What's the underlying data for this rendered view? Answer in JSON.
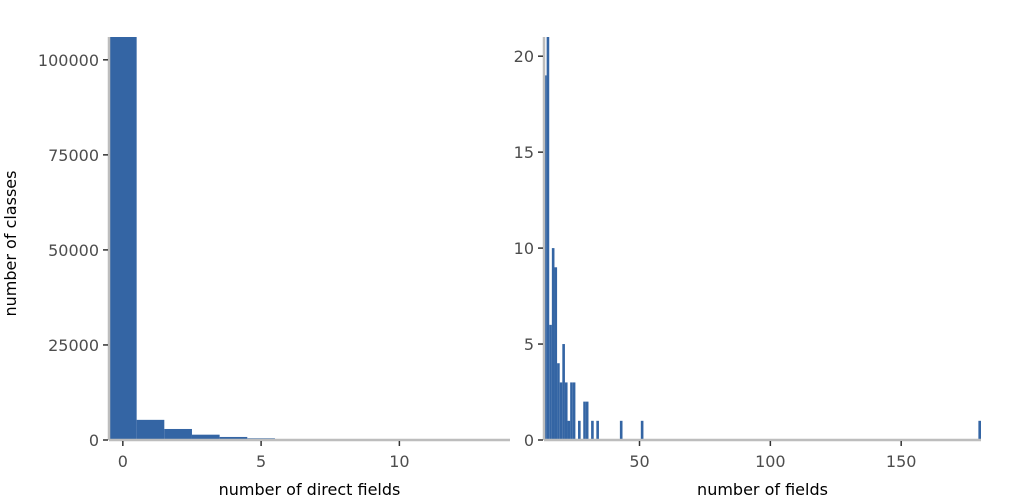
{
  "chart_data": [
    {
      "type": "bar",
      "xlabel": "number of direct fields",
      "ylabel": "number of classes",
      "xlim": [
        -0.5,
        14
      ],
      "ylim": [
        0,
        106000
      ],
      "x_ticks": [
        0,
        5,
        10
      ],
      "y_ticks": [
        0,
        25000,
        50000,
        75000,
        100000
      ],
      "bin_width": 1,
      "bins": [
        {
          "x": 0,
          "count": 106000
        },
        {
          "x": 1,
          "count": 5300
        },
        {
          "x": 2,
          "count": 2900
        },
        {
          "x": 3,
          "count": 1400
        },
        {
          "x": 4,
          "count": 800
        },
        {
          "x": 5,
          "count": 450
        },
        {
          "x": 6,
          "count": 250
        },
        {
          "x": 7,
          "count": 150
        },
        {
          "x": 8,
          "count": 100
        },
        {
          "x": 9,
          "count": 60
        },
        {
          "x": 10,
          "count": 40
        },
        {
          "x": 11,
          "count": 25
        },
        {
          "x": 12,
          "count": 15
        },
        {
          "x": 13,
          "count": 10
        }
      ],
      "grid": false,
      "color": "#3465a4"
    },
    {
      "type": "bar",
      "xlabel": "number of fields",
      "ylabel": "",
      "xlim": [
        13.5,
        180.5
      ],
      "ylim": [
        0,
        21
      ],
      "x_ticks": [
        50,
        100,
        150
      ],
      "y_ticks": [
        0,
        5,
        10,
        15,
        20
      ],
      "bin_width": 1,
      "bins": [
        {
          "x": 14,
          "count": 19
        },
        {
          "x": 15,
          "count": 21
        },
        {
          "x": 16,
          "count": 6
        },
        {
          "x": 17,
          "count": 10
        },
        {
          "x": 18,
          "count": 9
        },
        {
          "x": 19,
          "count": 4
        },
        {
          "x": 20,
          "count": 3
        },
        {
          "x": 21,
          "count": 5
        },
        {
          "x": 22,
          "count": 3
        },
        {
          "x": 23,
          "count": 1
        },
        {
          "x": 24,
          "count": 3
        },
        {
          "x": 25,
          "count": 3
        },
        {
          "x": 27,
          "count": 1
        },
        {
          "x": 29,
          "count": 2
        },
        {
          "x": 30,
          "count": 2
        },
        {
          "x": 32,
          "count": 1
        },
        {
          "x": 34,
          "count": 1
        },
        {
          "x": 43,
          "count": 1
        },
        {
          "x": 51,
          "count": 1
        },
        {
          "x": 180,
          "count": 1
        }
      ],
      "grid": false,
      "color": "#3465a4"
    }
  ]
}
